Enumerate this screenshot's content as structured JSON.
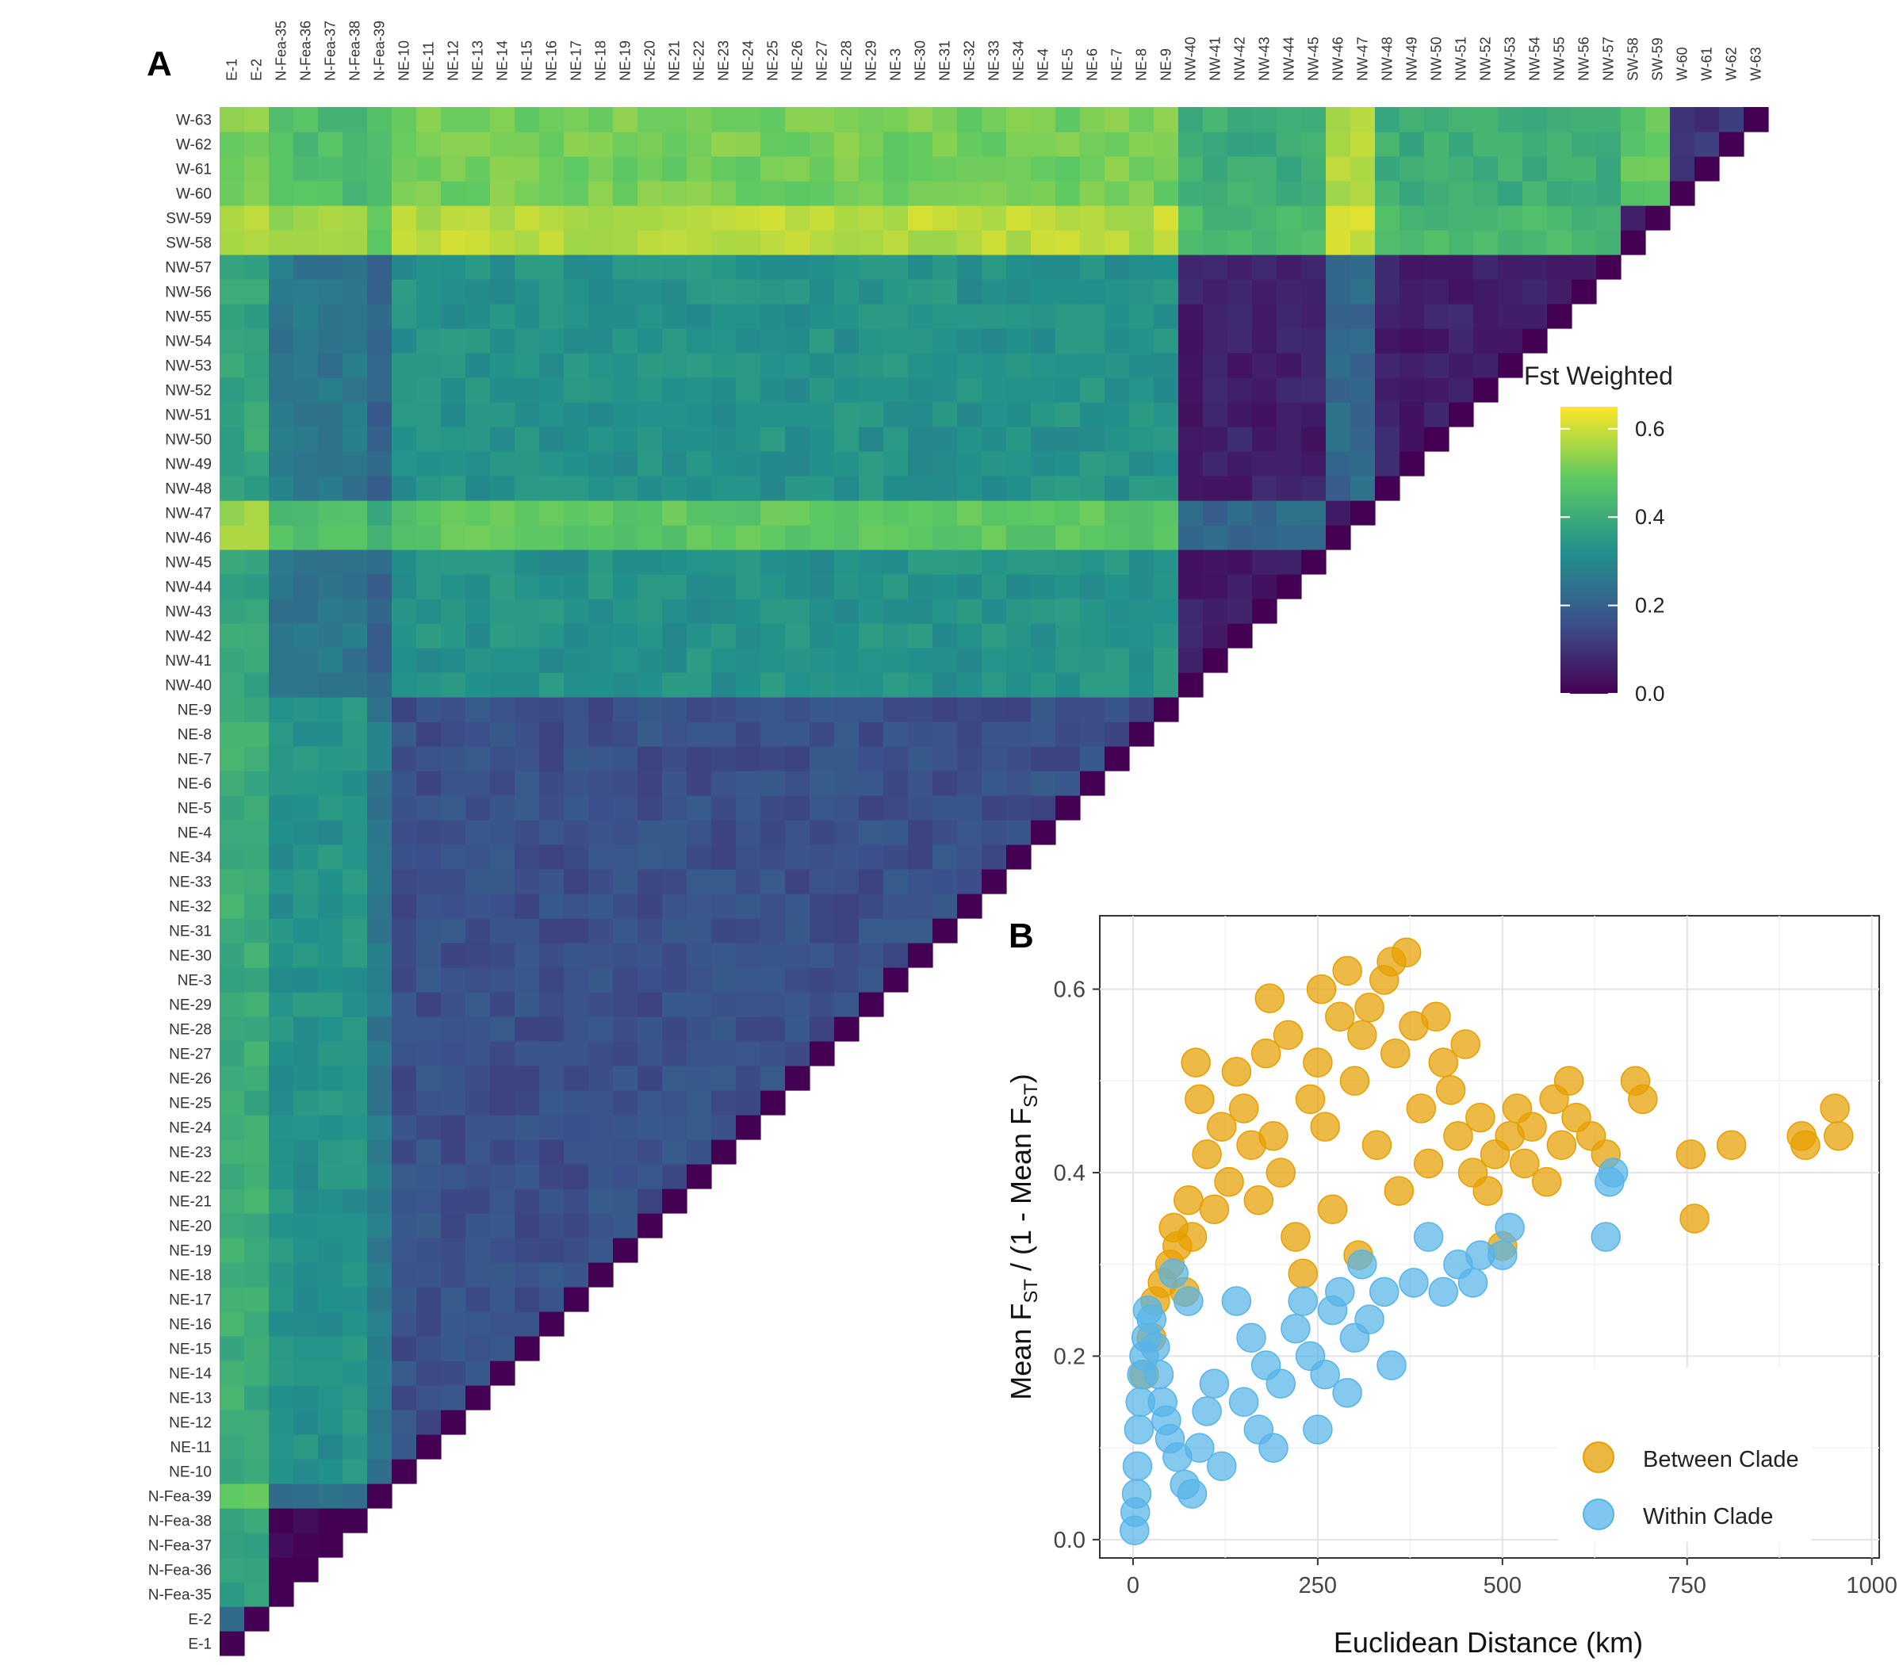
{
  "panel_labels": {
    "a": "A",
    "b": "B"
  },
  "chart_data": [
    {
      "type": "heatmap",
      "populations": [
        "E-1",
        "E-2",
        "N-Fea-35",
        "N-Fea-36",
        "N-Fea-37",
        "N-Fea-38",
        "N-Fea-39",
        "NE-10",
        "NE-11",
        "NE-12",
        "NE-13",
        "NE-14",
        "NE-15",
        "NE-16",
        "NE-17",
        "NE-18",
        "NE-19",
        "NE-20",
        "NE-21",
        "NE-22",
        "NE-23",
        "NE-24",
        "NE-25",
        "NE-26",
        "NE-27",
        "NE-28",
        "NE-29",
        "NE-3",
        "NE-30",
        "NE-31",
        "NE-32",
        "NE-33",
        "NE-34",
        "NE-4",
        "NE-5",
        "NE-6",
        "NE-7",
        "NE-8",
        "NE-9",
        "NW-40",
        "NW-41",
        "NW-42",
        "NW-43",
        "NW-44",
        "NW-45",
        "NW-46",
        "NW-47",
        "NW-48",
        "NW-49",
        "NW-50",
        "NW-51",
        "NW-52",
        "NW-53",
        "NW-54",
        "NW-55",
        "NW-56",
        "NW-57",
        "SW-58",
        "SW-59",
        "W-60",
        "W-61",
        "W-62",
        "W-63"
      ],
      "groups": {
        "E": [
          "E-1",
          "E-2"
        ],
        "NFea": [
          "N-Fea-35",
          "N-Fea-36",
          "N-Fea-37",
          "N-Fea-38"
        ],
        "NFea39": [
          "N-Fea-39"
        ],
        "NE": [
          "NE-10",
          "NE-11",
          "NE-12",
          "NE-13",
          "NE-14",
          "NE-15",
          "NE-16",
          "NE-17",
          "NE-18",
          "NE-19",
          "NE-20",
          "NE-21",
          "NE-22",
          "NE-23",
          "NE-24",
          "NE-25",
          "NE-26",
          "NE-27",
          "NE-28",
          "NE-29",
          "NE-3",
          "NE-30",
          "NE-31",
          "NE-32",
          "NE-33",
          "NE-34",
          "NE-4",
          "NE-5",
          "NE-6",
          "NE-7",
          "NE-8",
          "NE-9"
        ],
        "NW": [
          "NW-40",
          "NW-41",
          "NW-42",
          "NW-43",
          "NW-44",
          "NW-45",
          "NW-48",
          "NW-49",
          "NW-50",
          "NW-51",
          "NW-52",
          "NW-53",
          "NW-54",
          "NW-55",
          "NW-56",
          "NW-57"
        ],
        "NWhi": [
          "NW-46",
          "NW-47"
        ],
        "SW": [
          "SW-58",
          "SW-59"
        ],
        "W": [
          "W-60",
          "W-61",
          "W-62",
          "W-63"
        ]
      },
      "group_means": {
        "E|E": 0.2,
        "E|NFea": 0.38,
        "E|NFea39": 0.48,
        "E|NE": 0.4,
        "E|NW": 0.38,
        "E|NWhi": 0.55,
        "E|SW": 0.58,
        "E|W": 0.52,
        "NFea|NFea": 0.0,
        "NFea|NFea39": 0.22,
        "NFea|NE": 0.33,
        "NFea|NW": 0.26,
        "NFea|NWhi": 0.45,
        "NFea|SW": 0.55,
        "NFea|W": 0.45,
        "NFea39|NE": 0.26,
        "NFea39|NW": 0.2,
        "NFea39|NWhi": 0.4,
        "NFea39|SW": 0.5,
        "NFea39|W": 0.44,
        "NE|NE": 0.16,
        "NE|NW": 0.33,
        "NE|NWhi": 0.48,
        "NE|SW": 0.58,
        "NE|W": 0.51,
        "NW|NW": 0.06,
        "NW|NWhi": 0.22,
        "NW|SW": 0.44,
        "NW|W": 0.4,
        "NWhi|NWhi": 0.05,
        "NWhi|SW": 0.6,
        "NWhi|W": 0.56,
        "SW|SW": 0.05,
        "SW|W": 0.48,
        "W|W": 0.1
      },
      "color_scale": [
        "#440154",
        "#3b528b",
        "#21918c",
        "#5ec962",
        "#fde725"
      ],
      "legend": {
        "title": "Fst Weighted",
        "ticks": [
          "0.0",
          "0.2",
          "0.4",
          "0.6"
        ],
        "range": [
          0,
          0.65
        ]
      }
    },
    {
      "type": "scatter",
      "xlabel": "Euclidean Distance (km)",
      "ylabel_parts": [
        "Mean F",
        "ST",
        " / (1 - Mean F",
        "ST",
        ")"
      ],
      "xlim": [
        -45,
        1010
      ],
      "ylim": [
        -0.02,
        0.68
      ],
      "x_ticks": [
        "0",
        "250",
        "500",
        "750",
        "1000"
      ],
      "y_ticks": [
        "0.0",
        "0.2",
        "0.4",
        "0.6"
      ],
      "series": [
        {
          "name": "Between Clade",
          "color": "#e69f00",
          "points": [
            [
              15,
              0.18
            ],
            [
              25,
              0.22
            ],
            [
              30,
              0.26
            ],
            [
              40,
              0.28
            ],
            [
              50,
              0.3
            ],
            [
              55,
              0.34
            ],
            [
              60,
              0.32
            ],
            [
              70,
              0.27
            ],
            [
              75,
              0.37
            ],
            [
              80,
              0.33
            ],
            [
              85,
              0.52
            ],
            [
              90,
              0.48
            ],
            [
              100,
              0.42
            ],
            [
              110,
              0.36
            ],
            [
              120,
              0.45
            ],
            [
              130,
              0.39
            ],
            [
              140,
              0.51
            ],
            [
              150,
              0.47
            ],
            [
              160,
              0.43
            ],
            [
              170,
              0.37
            ],
            [
              180,
              0.53
            ],
            [
              185,
              0.59
            ],
            [
              190,
              0.44
            ],
            [
              200,
              0.4
            ],
            [
              210,
              0.55
            ],
            [
              220,
              0.33
            ],
            [
              230,
              0.29
            ],
            [
              240,
              0.48
            ],
            [
              250,
              0.52
            ],
            [
              255,
              0.6
            ],
            [
              260,
              0.45
            ],
            [
              270,
              0.36
            ],
            [
              280,
              0.57
            ],
            [
              290,
              0.62
            ],
            [
              300,
              0.5
            ],
            [
              305,
              0.31
            ],
            [
              310,
              0.55
            ],
            [
              320,
              0.58
            ],
            [
              330,
              0.43
            ],
            [
              340,
              0.61
            ],
            [
              350,
              0.63
            ],
            [
              355,
              0.53
            ],
            [
              360,
              0.38
            ],
            [
              370,
              0.64
            ],
            [
              380,
              0.56
            ],
            [
              390,
              0.47
            ],
            [
              400,
              0.41
            ],
            [
              410,
              0.57
            ],
            [
              420,
              0.52
            ],
            [
              430,
              0.49
            ],
            [
              440,
              0.44
            ],
            [
              450,
              0.54
            ],
            [
              460,
              0.4
            ],
            [
              470,
              0.46
            ],
            [
              480,
              0.38
            ],
            [
              490,
              0.42
            ],
            [
              500,
              0.32
            ],
            [
              510,
              0.44
            ],
            [
              520,
              0.47
            ],
            [
              530,
              0.41
            ],
            [
              540,
              0.45
            ],
            [
              560,
              0.39
            ],
            [
              570,
              0.48
            ],
            [
              580,
              0.43
            ],
            [
              590,
              0.5
            ],
            [
              600,
              0.46
            ],
            [
              620,
              0.44
            ],
            [
              640,
              0.42
            ],
            [
              680,
              0.5
            ],
            [
              690,
              0.48
            ],
            [
              755,
              0.42
            ],
            [
              760,
              0.35
            ],
            [
              810,
              0.43
            ],
            [
              905,
              0.44
            ],
            [
              910,
              0.43
            ],
            [
              950,
              0.47
            ],
            [
              955,
              0.44
            ]
          ]
        },
        {
          "name": "Within Clade",
          "color": "#56b4e9",
          "points": [
            [
              2,
              0.01
            ],
            [
              3,
              0.03
            ],
            [
              5,
              0.05
            ],
            [
              6,
              0.08
            ],
            [
              8,
              0.12
            ],
            [
              10,
              0.15
            ],
            [
              12,
              0.18
            ],
            [
              15,
              0.2
            ],
            [
              18,
              0.22
            ],
            [
              20,
              0.25
            ],
            [
              25,
              0.24
            ],
            [
              30,
              0.21
            ],
            [
              35,
              0.18
            ],
            [
              40,
              0.15
            ],
            [
              45,
              0.13
            ],
            [
              50,
              0.11
            ],
            [
              55,
              0.29
            ],
            [
              60,
              0.09
            ],
            [
              70,
              0.06
            ],
            [
              75,
              0.26
            ],
            [
              80,
              0.05
            ],
            [
              90,
              0.1
            ],
            [
              100,
              0.14
            ],
            [
              110,
              0.17
            ],
            [
              120,
              0.08
            ],
            [
              140,
              0.26
            ],
            [
              150,
              0.15
            ],
            [
              160,
              0.22
            ],
            [
              170,
              0.12
            ],
            [
              180,
              0.19
            ],
            [
              190,
              0.1
            ],
            [
              200,
              0.17
            ],
            [
              220,
              0.23
            ],
            [
              230,
              0.26
            ],
            [
              240,
              0.2
            ],
            [
              250,
              0.12
            ],
            [
              260,
              0.18
            ],
            [
              270,
              0.25
            ],
            [
              280,
              0.27
            ],
            [
              290,
              0.16
            ],
            [
              300,
              0.22
            ],
            [
              310,
              0.3
            ],
            [
              320,
              0.24
            ],
            [
              340,
              0.27
            ],
            [
              350,
              0.19
            ],
            [
              380,
              0.28
            ],
            [
              400,
              0.33
            ],
            [
              420,
              0.27
            ],
            [
              440,
              0.3
            ],
            [
              460,
              0.28
            ],
            [
              470,
              0.31
            ],
            [
              500,
              0.31
            ],
            [
              510,
              0.34
            ],
            [
              640,
              0.33
            ],
            [
              645,
              0.39
            ],
            [
              650,
              0.4
            ]
          ]
        }
      ]
    }
  ]
}
